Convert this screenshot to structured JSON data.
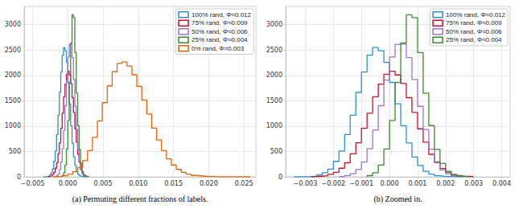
{
  "chart_data": [
    {
      "type": "histogram",
      "title": "(a) Permuting different fractions of labels.",
      "xlim": [
        -0.0062,
        0.0267
      ],
      "xticks": [
        {
          "value": -0.005,
          "label": "−0.005"
        },
        {
          "value": 0,
          "label": "0.000"
        },
        0.005,
        {
          "value": 0.01,
          "label": "0.010"
        },
        0.015,
        {
          "value": 0.02,
          "label": "0.020"
        },
        0.025
      ],
      "ylim": [
        0,
        3360
      ],
      "yticks": [
        0,
        500,
        1000,
        1500,
        2000,
        2500,
        3000
      ],
      "grid": true,
      "legend": "upper right",
      "series": [
        {
          "name": "100% rand, Φ≈0.012",
          "color": "#2b8fd4",
          "bins": [
            -0.0034,
            -0.0032,
            -0.003,
            -0.0028,
            -0.0026,
            -0.0024,
            -0.0022,
            -0.002,
            -0.0018,
            -0.0016,
            -0.0014,
            -0.0012,
            -0.001,
            -0.0008,
            -0.0006,
            -0.0004,
            -0.0002,
            0,
            0.0002,
            0.0004,
            0.0006,
            0.0008,
            0.001,
            0.0012,
            0.0014,
            0.0016,
            0.0018,
            0.002,
            0.0022,
            0.0024,
            0.0026
          ],
          "counts": [
            1,
            2,
            7,
            14,
            36,
            80,
            152,
            305,
            509,
            834,
            1215,
            1664,
            2066,
            2398,
            2551,
            2487,
            2258,
            1862,
            1441,
            1009,
            668,
            391,
            224,
            108,
            55,
            21,
            10,
            4,
            1,
            1
          ]
        },
        {
          "name": "75% rand, Φ≈0.009",
          "color": "#c8102e",
          "bins": [
            -0.0028,
            -0.0026,
            -0.0024,
            -0.0022,
            -0.002,
            -0.0018,
            -0.0016,
            -0.0014,
            -0.0012,
            -0.001,
            -0.0008,
            -0.0006,
            -0.0004,
            -0.0002,
            0,
            0.0002,
            0.0004,
            0.0006,
            0.0008,
            0.001,
            0.0012,
            0.0014,
            0.0016,
            0.0018,
            0.002,
            0.0022,
            0.0024,
            0.0026,
            0.0028,
            0.003
          ],
          "counts": [
            5,
            12,
            22,
            49,
            88,
            170,
            277,
            455,
            671,
            958,
            1255,
            1578,
            1829,
            2022,
            2083,
            2009,
            1842,
            1561,
            1270,
            947,
            682,
            444,
            285,
            163,
            94,
            45,
            24,
            10,
            5
          ]
        },
        {
          "name": "50% rand, Φ≈0.006",
          "color": "#9b76cf",
          "bins": [
            -0.0018,
            -0.0016,
            -0.0014,
            -0.0012,
            -0.001,
            -0.0008,
            -0.0006,
            -0.0004,
            -0.0002,
            0,
            0.0002,
            0.0004,
            0.0006,
            0.0008,
            0.001,
            0.0012,
            0.0014,
            0.0016,
            0.0018,
            0.002,
            0.0022,
            0.0024,
            0.0026,
            0.0028
          ],
          "counts": [
            8,
            25,
            60,
            144,
            290,
            556,
            921,
            1403,
            1908,
            2362,
            2612,
            2620,
            2351,
            1920,
            1391,
            934,
            546,
            297,
            138,
            63,
            23,
            9,
            3
          ]
        },
        {
          "name": "25% rand, Φ≈0.004",
          "color": "#3a8c2c",
          "bins": [
            -0.0008,
            -0.0006,
            -0.0004,
            -0.0002,
            0,
            0.0002,
            0.0004,
            0.0006,
            0.0008,
            0.001,
            0.0012,
            0.0014,
            0.0016,
            0.0018,
            0.002,
            0.0022,
            0.0024,
            0.0026,
            0.0028
          ],
          "counts": [
            24,
            80,
            233,
            548,
            1110,
            1860,
            2640,
            3195,
            3140,
            2450,
            1650,
            1010,
            540,
            262,
            108,
            41,
            13,
            4
          ]
        },
        {
          "name": "0% rand, Φ≈0.003",
          "color": "#e8630a",
          "bins": [
            -0.0021,
            -0.0014,
            -0.0007,
            0,
            0.0007,
            0.0014,
            0.0021,
            0.0028,
            0.0035,
            0.0042,
            0.0049,
            0.0056,
            0.0063,
            0.007,
            0.0077,
            0.0084,
            0.0091,
            0.0098,
            0.0105,
            0.0112,
            0.0119,
            0.0126,
            0.0133,
            0.014,
            0.0147,
            0.0154,
            0.0161,
            0.0168,
            0.0175,
            0.0182,
            0.0189,
            0.0196,
            0.0203,
            0.021,
            0.0217,
            0.0224,
            0.0231,
            0.0238,
            0.0245,
            0.0252,
            0.0259
          ],
          "counts": [
            4,
            11,
            24,
            50,
            100,
            184,
            320,
            517,
            779,
            1105,
            1462,
            1795,
            2072,
            2238,
            2263,
            2184,
            2013,
            1786,
            1514,
            1239,
            960,
            726,
            517,
            354,
            234,
            147,
            90,
            52,
            28,
            20,
            12,
            8,
            5,
            3,
            2,
            1,
            1,
            0,
            1,
            0
          ]
        }
      ]
    },
    {
      "type": "histogram",
      "title": "(b) Zoomed in.",
      "xlim": [
        -0.0037,
        0.0043
      ],
      "xticks": [
        {
          "value": -0.003,
          "label": "−0.003"
        },
        {
          "value": -0.002,
          "label": "−0.002"
        },
        {
          "value": -0.001,
          "label": "−0.001"
        },
        {
          "value": 0,
          "label": "0.000"
        },
        0.001,
        0.002,
        0.003,
        0.004
      ],
      "ylim": [
        0,
        3360
      ],
      "yticks": [
        0,
        500,
        1000,
        1500,
        2000,
        2500,
        3000
      ],
      "grid": true,
      "legend": "upper right",
      "series": [
        {
          "name": "100% rand, Φ≈0.012",
          "color": "#2b8fd4",
          "bins": [
            -0.0034,
            -0.0032,
            -0.003,
            -0.0028,
            -0.0026,
            -0.0024,
            -0.0022,
            -0.002,
            -0.0018,
            -0.0016,
            -0.0014,
            -0.0012,
            -0.001,
            -0.0008,
            -0.0006,
            -0.0004,
            -0.0002,
            0,
            0.0002,
            0.0004,
            0.0006,
            0.0008,
            0.001,
            0.0012,
            0.0014,
            0.0016,
            0.0018,
            0.002,
            0.0022,
            0.0024,
            0.0026
          ],
          "counts": [
            1,
            2,
            7,
            14,
            36,
            80,
            152,
            305,
            509,
            834,
            1215,
            1664,
            2066,
            2398,
            2551,
            2487,
            2258,
            1862,
            1441,
            1009,
            668,
            391,
            224,
            108,
            55,
            21,
            10,
            4,
            1,
            1
          ]
        },
        {
          "name": "75% rand, Φ≈0.009",
          "color": "#c8102e",
          "bins": [
            -0.0028,
            -0.0026,
            -0.0024,
            -0.0022,
            -0.002,
            -0.0018,
            -0.0016,
            -0.0014,
            -0.0012,
            -0.001,
            -0.0008,
            -0.0006,
            -0.0004,
            -0.0002,
            0,
            0.0002,
            0.0004,
            0.0006,
            0.0008,
            0.001,
            0.0012,
            0.0014,
            0.0016,
            0.0018,
            0.002,
            0.0022,
            0.0024,
            0.0026,
            0.0028,
            0.003
          ],
          "counts": [
            5,
            12,
            22,
            49,
            88,
            170,
            277,
            455,
            671,
            958,
            1255,
            1578,
            1829,
            2022,
            2083,
            2009,
            1842,
            1561,
            1270,
            947,
            682,
            444,
            285,
            163,
            94,
            45,
            24,
            10,
            5
          ]
        },
        {
          "name": "50% rand, Φ≈0.006",
          "color": "#9b76cf",
          "bins": [
            -0.0018,
            -0.0016,
            -0.0014,
            -0.0012,
            -0.001,
            -0.0008,
            -0.0006,
            -0.0004,
            -0.0002,
            0,
            0.0002,
            0.0004,
            0.0006,
            0.0008,
            0.001,
            0.0012,
            0.0014,
            0.0016,
            0.0018,
            0.002,
            0.0022,
            0.0024,
            0.0026,
            0.0028
          ],
          "counts": [
            8,
            25,
            60,
            144,
            290,
            556,
            921,
            1403,
            1908,
            2362,
            2612,
            2620,
            2351,
            1920,
            1391,
            934,
            546,
            297,
            138,
            63,
            23,
            9,
            3
          ]
        },
        {
          "name": "25% rand, Φ≈0.004",
          "color": "#3a8c2c",
          "bins": [
            -0.0008,
            -0.0006,
            -0.0004,
            -0.0002,
            0,
            0.0002,
            0.0004,
            0.0006,
            0.0008,
            0.001,
            0.0012,
            0.0014,
            0.0016,
            0.0018,
            0.002,
            0.0022,
            0.0024,
            0.0026,
            0.0028
          ],
          "counts": [
            24,
            80,
            233,
            548,
            1110,
            1860,
            2640,
            3195,
            3140,
            2450,
            1650,
            1010,
            540,
            262,
            108,
            41,
            13,
            4
          ]
        }
      ]
    }
  ]
}
